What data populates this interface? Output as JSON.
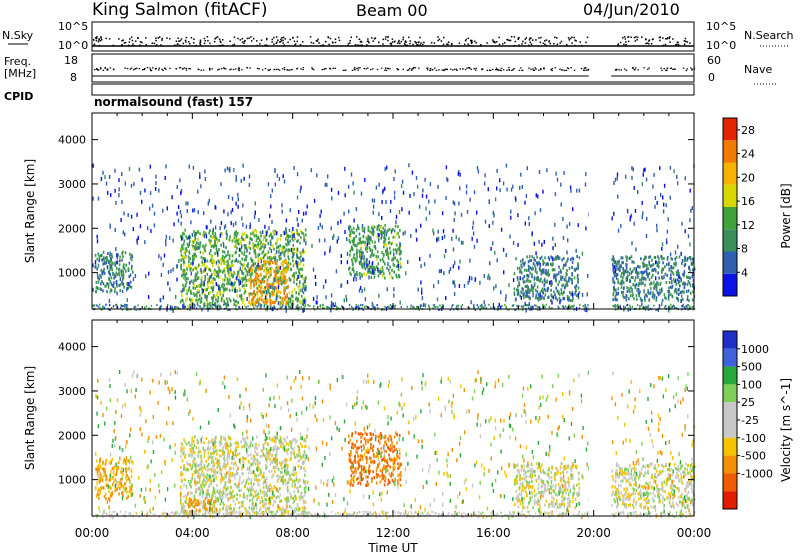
{
  "header": {
    "station": "King Salmon (fitACF)",
    "beam": "Beam 00",
    "date": "04/Jun/2010"
  },
  "nsky_panel": {
    "label": "N.Sky",
    "right_label": "N.Search",
    "left_ticks": [
      "10^5",
      "10^0"
    ],
    "right_ticks": [
      "10^5",
      "10^0"
    ]
  },
  "freq_panel": {
    "label_line1": "Freq.",
    "label_line2": "[MHz]",
    "right_label": "Nave",
    "left_ticks": [
      "18",
      "8"
    ],
    "right_ticks": [
      "60",
      "0"
    ]
  },
  "cpid_panel": {
    "label": "CPID",
    "text": "normalsound (fast) 157"
  },
  "colors": {
    "power_scale": [
      "#0a12e6",
      "#2f5fb0",
      "#3a8f5a",
      "#3fa33a",
      "#d8d800",
      "#f6b200",
      "#f27a00",
      "#e52400"
    ],
    "velocity_scale": [
      "#1f2fc8",
      "#3f63d8",
      "#27a83a",
      "#7fd05a",
      "#c8c8c8",
      "#c8c8c8",
      "#f4c400",
      "#f29100",
      "#f05a00",
      "#e21c00"
    ],
    "data_gap": "#ffffff"
  },
  "chart_data": [
    {
      "type": "heatmap",
      "title": "Power",
      "xlabel": "",
      "ylabel": "Slant Range [km]",
      "x_ticks": [
        "00:00",
        "04:00",
        "08:00",
        "12:00",
        "16:00",
        "20:00",
        "00:00"
      ],
      "xlim_hours": [
        0,
        24
      ],
      "y_ticks": [
        1000,
        2000,
        3000,
        4000
      ],
      "ylim": [
        180,
        4600
      ],
      "colorbar": {
        "label": "Power [dB]",
        "ticks": [
          4,
          8,
          12,
          16,
          20,
          24,
          28
        ],
        "range": [
          0,
          30
        ]
      },
      "data_gap_hours": [
        19.8,
        20.7
      ],
      "echo_regions": [
        {
          "start_hour": 0.1,
          "end_hour": 1.6,
          "range_km": [
            600,
            1500
          ],
          "value": 9
        },
        {
          "start_hour": 3.5,
          "end_hour": 8.5,
          "range_km": [
            250,
            2000
          ],
          "value": 13
        },
        {
          "start_hour": 6.2,
          "end_hour": 7.8,
          "range_km": [
            300,
            1300
          ],
          "value": 22
        },
        {
          "start_hour": 10.2,
          "end_hour": 12.3,
          "range_km": [
            900,
            2100
          ],
          "value": 12
        },
        {
          "start_hour": 16.8,
          "end_hour": 19.4,
          "range_km": [
            400,
            1400
          ],
          "value": 8
        },
        {
          "start_hour": 20.7,
          "end_hour": 24.0,
          "range_km": [
            400,
            1400
          ],
          "value": 8
        }
      ]
    },
    {
      "type": "heatmap",
      "title": "Velocity",
      "xlabel": "Time UT",
      "ylabel": "Slant Range [km]",
      "x_ticks": [
        "00:00",
        "04:00",
        "08:00",
        "12:00",
        "16:00",
        "20:00",
        "00:00"
      ],
      "xlim_hours": [
        0,
        24
      ],
      "y_ticks": [
        1000,
        2000,
        3000,
        4000
      ],
      "ylim": [
        180,
        4600
      ],
      "colorbar": {
        "label": "Velocity [m s^-1]",
        "ticks": [
          1000,
          500,
          100,
          25,
          -25,
          -100,
          -500,
          -1000
        ]
      },
      "data_gap_hours": [
        19.8,
        20.7
      ],
      "echo_regions": [
        {
          "start_hour": 0.1,
          "end_hour": 1.6,
          "range_km": [
            600,
            1500
          ],
          "value": -100
        },
        {
          "start_hour": 3.5,
          "end_hour": 8.5,
          "range_km": [
            250,
            2000
          ],
          "value": 0
        },
        {
          "start_hour": 3.8,
          "end_hour": 5.0,
          "range_km": [
            300,
            600
          ],
          "value": -300
        },
        {
          "start_hour": 10.2,
          "end_hour": 12.3,
          "range_km": [
            900,
            2100
          ],
          "value": -500
        },
        {
          "start_hour": 16.8,
          "end_hour": 19.4,
          "range_km": [
            400,
            1400
          ],
          "value": 0
        },
        {
          "start_hour": 20.7,
          "end_hour": 24.0,
          "range_km": [
            400,
            1400
          ],
          "value": 0
        }
      ]
    }
  ]
}
